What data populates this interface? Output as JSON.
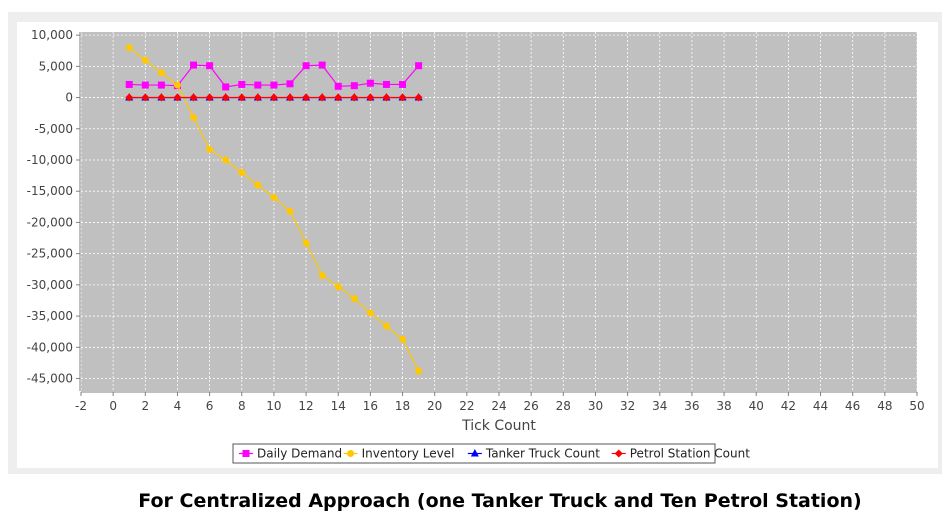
{
  "caption": "For Centralized Approach (one Tanker Truck and Ten Petrol Station)",
  "chart_data": {
    "type": "line",
    "title": "",
    "xlabel": "Tick Count",
    "ylabel": "",
    "xlim": [
      -2,
      50
    ],
    "ylim": [
      -47000,
      10500
    ],
    "xticks": [
      -2,
      0,
      2,
      4,
      6,
      8,
      10,
      12,
      14,
      16,
      18,
      20,
      22,
      24,
      26,
      28,
      30,
      32,
      34,
      36,
      38,
      40,
      42,
      44,
      46,
      48,
      50
    ],
    "yticks": [
      10000,
      5000,
      0,
      -5000,
      -10000,
      -15000,
      -20000,
      -25000,
      -30000,
      -35000,
      -40000,
      -45000
    ],
    "ytick_labels": [
      "10,000",
      "5,000",
      "0",
      "-5,000",
      "-10,000",
      "-15,000",
      "-20,000",
      "-25,000",
      "-30,000",
      "-35,000",
      "-40,000",
      "-45,000"
    ],
    "grid": true,
    "legend_position": "bottom",
    "plot_background": "#c0c0c0",
    "series": [
      {
        "name": "Daily Demand",
        "color": "#ff00ff",
        "marker": "square",
        "x": [
          1,
          2,
          3,
          4,
          5,
          6,
          7,
          8,
          9,
          10,
          11,
          12,
          13,
          14,
          15,
          16,
          17,
          18,
          19
        ],
        "y": [
          2100,
          2000,
          2000,
          1900,
          5200,
          5100,
          1700,
          2100,
          2000,
          2000,
          2200,
          5100,
          5200,
          1800,
          1900,
          2300,
          2100,
          2100,
          5100
        ]
      },
      {
        "name": "Inventory Level",
        "color": "#ffc800",
        "marker": "circle",
        "x": [
          1,
          2,
          3,
          4,
          5,
          6,
          7,
          8,
          9,
          10,
          11,
          12,
          13,
          14,
          15,
          16,
          17,
          18,
          19
        ],
        "y": [
          8000,
          6000,
          4000,
          2000,
          -3200,
          -8300,
          -10000,
          -12000,
          -14000,
          -16000,
          -18200,
          -23300,
          -28500,
          -30300,
          -32200,
          -34500,
          -36600,
          -38700,
          -43800
        ]
      },
      {
        "name": "Tanker Truck Count",
        "color": "#0000ff",
        "marker": "triangle",
        "x": [
          1,
          2,
          3,
          4,
          5,
          6,
          7,
          8,
          9,
          10,
          11,
          12,
          13,
          14,
          15,
          16,
          17,
          18,
          19
        ],
        "y": [
          1,
          1,
          1,
          1,
          1,
          1,
          1,
          1,
          1,
          1,
          1,
          1,
          1,
          1,
          1,
          1,
          1,
          1,
          1
        ]
      },
      {
        "name": "Petrol Station Count",
        "color": "#ff0000",
        "marker": "diamond",
        "x": [
          1,
          2,
          3,
          4,
          5,
          6,
          7,
          8,
          9,
          10,
          11,
          12,
          13,
          14,
          15,
          16,
          17,
          18,
          19
        ],
        "y": [
          10,
          10,
          10,
          10,
          10,
          10,
          10,
          10,
          10,
          10,
          10,
          10,
          10,
          10,
          10,
          10,
          10,
          10,
          10
        ]
      }
    ]
  }
}
